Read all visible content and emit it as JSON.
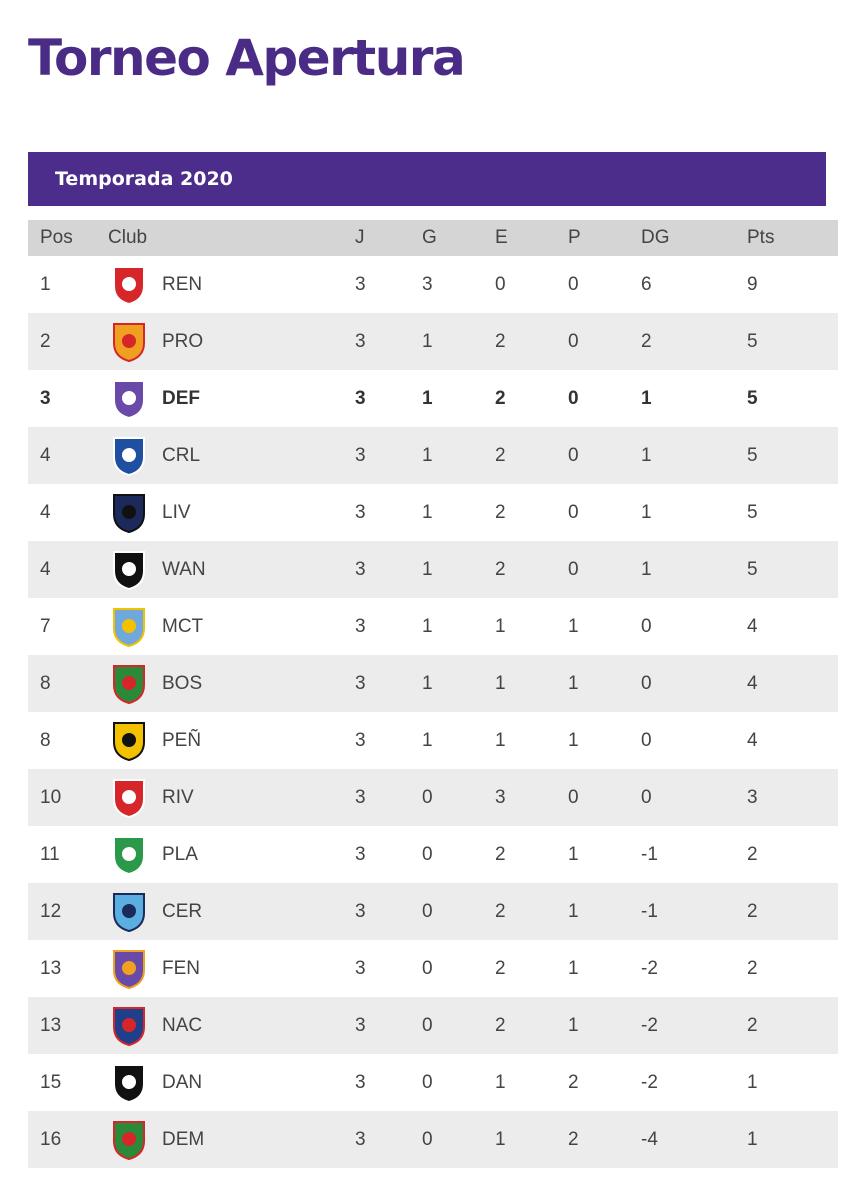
{
  "page": {
    "title": "Torneo Apertura",
    "season": "Temporada 2020"
  },
  "table": {
    "headers": [
      "Pos",
      "Club",
      "J",
      "G",
      "E",
      "P",
      "DG",
      "Pts"
    ],
    "rows": [
      {
        "pos": "1",
        "club": "REN",
        "j": "3",
        "g": "3",
        "e": "0",
        "p": "0",
        "dg": "6",
        "pts": "9",
        "badge": "renacimiento-crest-icon",
        "colors": [
          "#d6262a",
          "#ffffff"
        ],
        "highlight": false
      },
      {
        "pos": "2",
        "club": "PRO",
        "j": "3",
        "g": "1",
        "e": "2",
        "p": "0",
        "dg": "2",
        "pts": "5",
        "badge": "progreso-crest-icon",
        "colors": [
          "#f0a020",
          "#d6262a"
        ],
        "highlight": false
      },
      {
        "pos": "3",
        "club": "DEF",
        "j": "3",
        "g": "1",
        "e": "2",
        "p": "0",
        "dg": "1",
        "pts": "5",
        "badge": "defensor-crest-icon",
        "colors": [
          "#6a4aa8",
          "#ffffff"
        ],
        "highlight": true
      },
      {
        "pos": "4",
        "club": "CRL",
        "j": "3",
        "g": "1",
        "e": "2",
        "p": "0",
        "dg": "1",
        "pts": "5",
        "badge": "cerro-largo-crest-icon",
        "colors": [
          "#1f4fa0",
          "#ffffff"
        ],
        "highlight": false
      },
      {
        "pos": "4",
        "club": "LIV",
        "j": "3",
        "g": "1",
        "e": "2",
        "p": "0",
        "dg": "1",
        "pts": "5",
        "badge": "liverpool-crest-icon",
        "colors": [
          "#1b2a5a",
          "#111111"
        ],
        "highlight": false
      },
      {
        "pos": "4",
        "club": "WAN",
        "j": "3",
        "g": "1",
        "e": "2",
        "p": "0",
        "dg": "1",
        "pts": "5",
        "badge": "wanderers-crest-icon",
        "colors": [
          "#111111",
          "#ffffff"
        ],
        "highlight": false
      },
      {
        "pos": "7",
        "club": "MCT",
        "j": "3",
        "g": "1",
        "e": "1",
        "p": "1",
        "dg": "0",
        "pts": "4",
        "badge": "montevideo-city-crest-icon",
        "colors": [
          "#6fa8dc",
          "#f2c200"
        ],
        "highlight": false
      },
      {
        "pos": "8",
        "club": "BOS",
        "j": "3",
        "g": "1",
        "e": "1",
        "p": "1",
        "dg": "0",
        "pts": "4",
        "badge": "boston-river-crest-icon",
        "colors": [
          "#2a8a3a",
          "#d6262a"
        ],
        "highlight": false
      },
      {
        "pos": "8",
        "club": "PEÑ",
        "j": "3",
        "g": "1",
        "e": "1",
        "p": "1",
        "dg": "0",
        "pts": "4",
        "badge": "penarol-crest-icon",
        "colors": [
          "#f2c200",
          "#111111"
        ],
        "highlight": false
      },
      {
        "pos": "10",
        "club": "RIV",
        "j": "3",
        "g": "0",
        "e": "3",
        "p": "0",
        "dg": "0",
        "pts": "3",
        "badge": "river-plate-crest-icon",
        "colors": [
          "#d6262a",
          "#ffffff"
        ],
        "highlight": false
      },
      {
        "pos": "11",
        "club": "PLA",
        "j": "3",
        "g": "0",
        "e": "2",
        "p": "1",
        "dg": "-1",
        "pts": "2",
        "badge": "plaza-colonia-crest-icon",
        "colors": [
          "#2a9a4a",
          "#ffffff"
        ],
        "highlight": false
      },
      {
        "pos": "12",
        "club": "CER",
        "j": "3",
        "g": "0",
        "e": "2",
        "p": "1",
        "dg": "-1",
        "pts": "2",
        "badge": "cerro-crest-icon",
        "colors": [
          "#5aaee0",
          "#1b2a5a"
        ],
        "highlight": false
      },
      {
        "pos": "13",
        "club": "FEN",
        "j": "3",
        "g": "0",
        "e": "2",
        "p": "1",
        "dg": "-2",
        "pts": "2",
        "badge": "fenix-crest-icon",
        "colors": [
          "#6a4aa8",
          "#f2a020"
        ],
        "highlight": false
      },
      {
        "pos": "13",
        "club": "NAC",
        "j": "3",
        "g": "0",
        "e": "2",
        "p": "1",
        "dg": "-2",
        "pts": "2",
        "badge": "nacional-crest-icon",
        "colors": [
          "#1f3f8a",
          "#d6262a"
        ],
        "highlight": false
      },
      {
        "pos": "15",
        "club": "DAN",
        "j": "3",
        "g": "0",
        "e": "1",
        "p": "2",
        "dg": "-2",
        "pts": "1",
        "badge": "danubio-crest-icon",
        "colors": [
          "#111111",
          "#ffffff"
        ],
        "highlight": false
      },
      {
        "pos": "16",
        "club": "DEM",
        "j": "3",
        "g": "0",
        "e": "1",
        "p": "2",
        "dg": "-4",
        "pts": "1",
        "badge": "deportivo-maldonado-crest-icon",
        "colors": [
          "#2a8a3a",
          "#d6262a"
        ],
        "highlight": false
      }
    ]
  }
}
